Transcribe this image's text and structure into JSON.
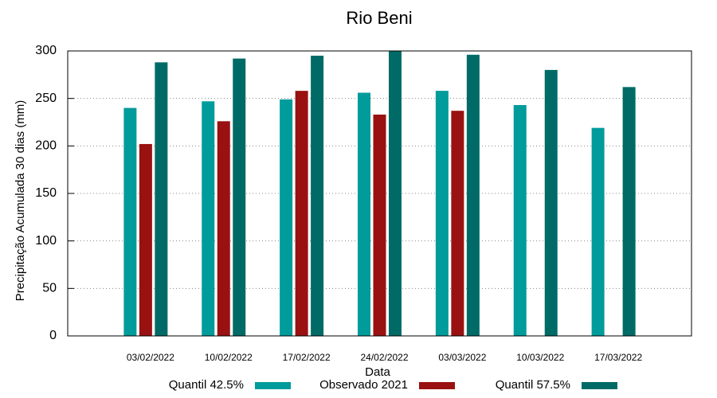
{
  "chart_data": {
    "type": "bar",
    "title": "Rio Beni",
    "x_label": "Data",
    "y_label": "Precipitação Acumulada 30 dias (mm)",
    "categories": [
      "03/02/2022",
      "10/02/2022",
      "17/02/2022",
      "24/02/2022",
      "03/03/2022",
      "10/03/2022",
      "17/03/2022"
    ],
    "series": [
      {
        "name": "Quantil 42.5%",
        "color": "#009b9b",
        "values": [
          240,
          247,
          249,
          256,
          258,
          243,
          219
        ]
      },
      {
        "name": "Observado 2021",
        "color": "#991111",
        "values": [
          202,
          226,
          258,
          233,
          237,
          null,
          null
        ]
      },
      {
        "name": "Quantil 57.5%",
        "color": "#006b66",
        "values": [
          288,
          292,
          295,
          300,
          296,
          280,
          262
        ]
      }
    ],
    "ylim": [
      0,
      300
    ],
    "yticks": [
      0,
      50,
      100,
      150,
      200,
      250,
      300
    ],
    "grid": true,
    "legend": "bottom"
  }
}
